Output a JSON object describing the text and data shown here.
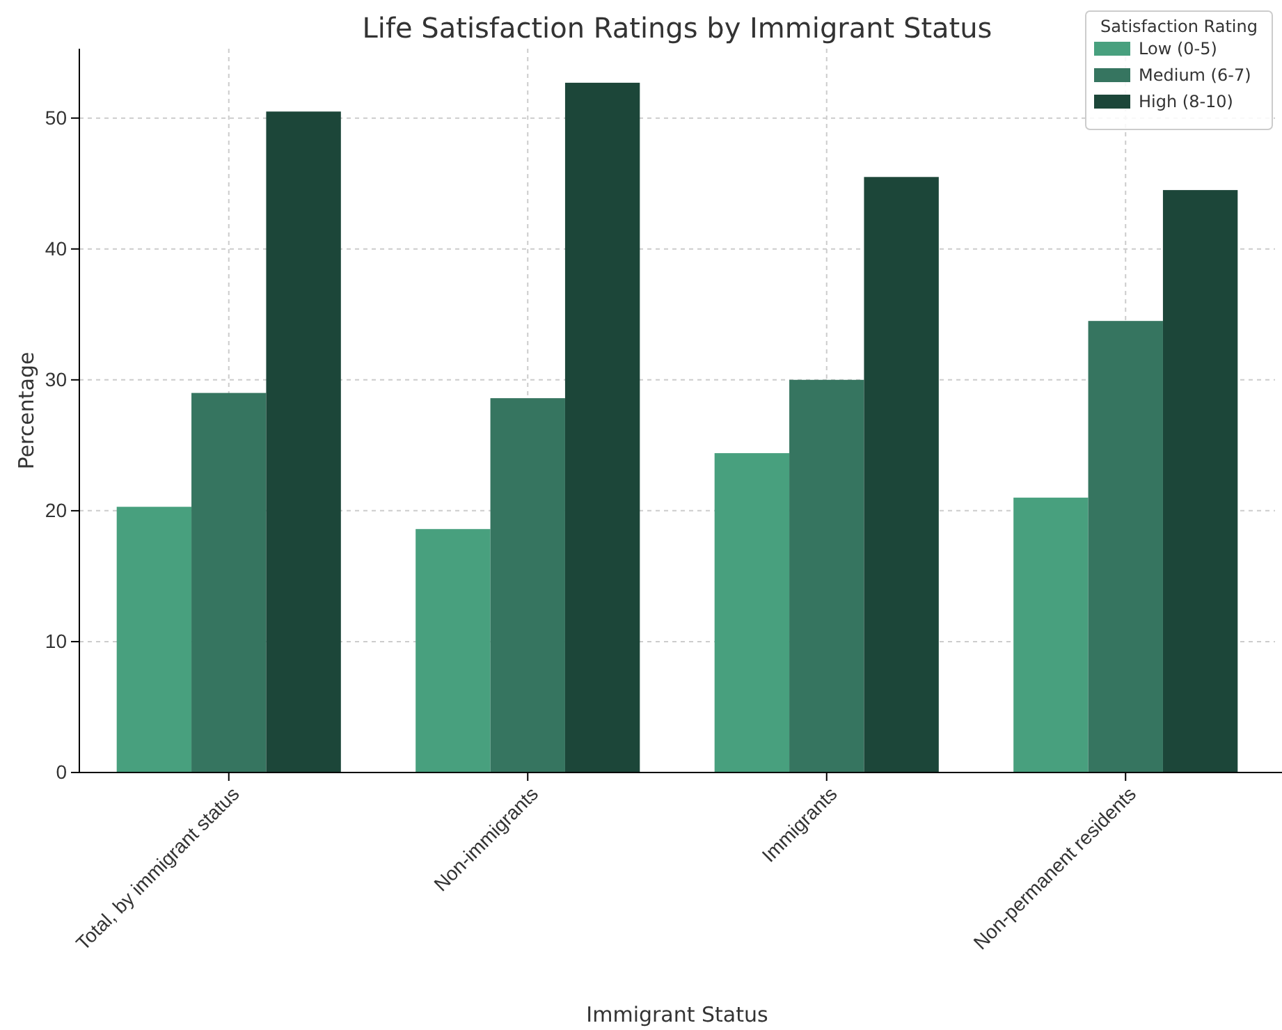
{
  "chart_data": {
    "type": "bar",
    "title": "Life Satisfaction Ratings by Immigrant Status",
    "xlabel": "Immigrant Status",
    "ylabel": "Percentage",
    "legend_title": "Satisfaction Rating",
    "categories": [
      "Total, by immigrant status",
      "Non-immigrants",
      "Immigrants",
      "Non-permanent residents"
    ],
    "series": [
      {
        "name": "Low (0-5)",
        "color": "#48a07e",
        "values": [
          20.3,
          18.6,
          24.4,
          21.0
        ]
      },
      {
        "name": "Medium (6-7)",
        "color": "#367560",
        "values": [
          29.0,
          28.6,
          30.0,
          34.5
        ]
      },
      {
        "name": "High (8-10)",
        "color": "#1c4639",
        "values": [
          50.5,
          52.7,
          45.5,
          44.5
        ]
      }
    ],
    "ylim": [
      0,
      55.3
    ],
    "yticks": [
      0,
      10,
      20,
      30,
      40,
      50
    ],
    "grid": true,
    "legend": "top right"
  }
}
